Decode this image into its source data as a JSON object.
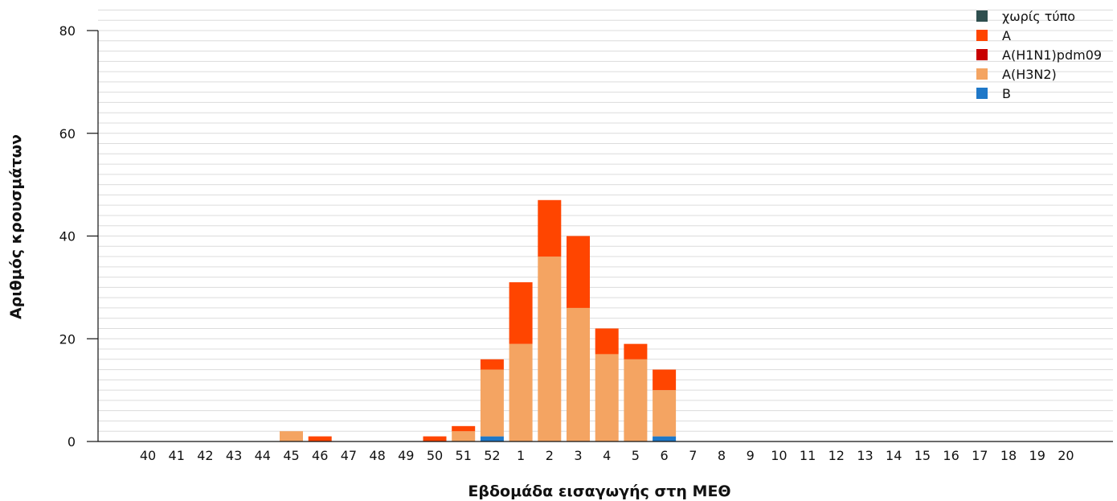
{
  "chart_data": {
    "type": "bar",
    "stacked": true,
    "title": "",
    "xlabel": "Εβδομάδα εισαγωγής στη ΜΕΘ",
    "ylabel": "Αριθμός κρουσμάτων",
    "ylim": [
      0,
      80
    ],
    "yticks": [
      0,
      20,
      40,
      60,
      80
    ],
    "grid": true,
    "legend_position": "top-right",
    "categories": [
      "40",
      "41",
      "42",
      "43",
      "44",
      "45",
      "46",
      "47",
      "48",
      "49",
      "50",
      "51",
      "52",
      "1",
      "2",
      "3",
      "4",
      "5",
      "6",
      "7",
      "8",
      "9",
      "10",
      "11",
      "12",
      "13",
      "14",
      "15",
      "16",
      "17",
      "18",
      "19",
      "20"
    ],
    "series": [
      {
        "name": "B",
        "color": "#1f78c8",
        "values": [
          0,
          0,
          0,
          0,
          0,
          0,
          0,
          0,
          0,
          0,
          0,
          0,
          1,
          0,
          0,
          0,
          0,
          0,
          1,
          0,
          0,
          0,
          0,
          0,
          0,
          0,
          0,
          0,
          0,
          0,
          0,
          0,
          0
        ]
      },
      {
        "name": "A(H3N2)",
        "color": "#f4a462",
        "values": [
          0,
          0,
          0,
          0,
          0,
          2,
          0,
          0,
          0,
          0,
          0,
          2,
          13,
          19,
          36,
          26,
          17,
          16,
          9,
          0,
          0,
          0,
          0,
          0,
          0,
          0,
          0,
          0,
          0,
          0,
          0,
          0,
          0
        ]
      },
      {
        "name": "A(H1N1)pdm09",
        "color": "#c80000",
        "values": [
          0,
          0,
          0,
          0,
          0,
          0,
          0,
          0,
          0,
          0,
          0,
          0,
          0,
          0,
          0,
          0,
          0,
          0,
          0,
          0,
          0,
          0,
          0,
          0,
          0,
          0,
          0,
          0,
          0,
          0,
          0,
          0,
          0
        ]
      },
      {
        "name": "A",
        "color": "#ff4500",
        "values": [
          0,
          0,
          0,
          0,
          0,
          0,
          1,
          0,
          0,
          0,
          1,
          1,
          2,
          12,
          11,
          14,
          5,
          3,
          4,
          0,
          0,
          0,
          0,
          0,
          0,
          0,
          0,
          0,
          0,
          0,
          0,
          0,
          0
        ]
      },
      {
        "name": "χωρίς τύπο",
        "color": "#2f4f4f",
        "values": [
          0,
          0,
          0,
          0,
          0,
          0,
          0,
          0,
          0,
          0,
          0,
          0,
          0,
          0,
          0,
          0,
          0,
          0,
          0,
          0,
          0,
          0,
          0,
          0,
          0,
          0,
          0,
          0,
          0,
          0,
          0,
          0,
          0
        ]
      }
    ],
    "legend_order": [
      "χωρίς τύπο",
      "A",
      "A(H1N1)pdm09",
      "A(H3N2)",
      "B"
    ]
  }
}
